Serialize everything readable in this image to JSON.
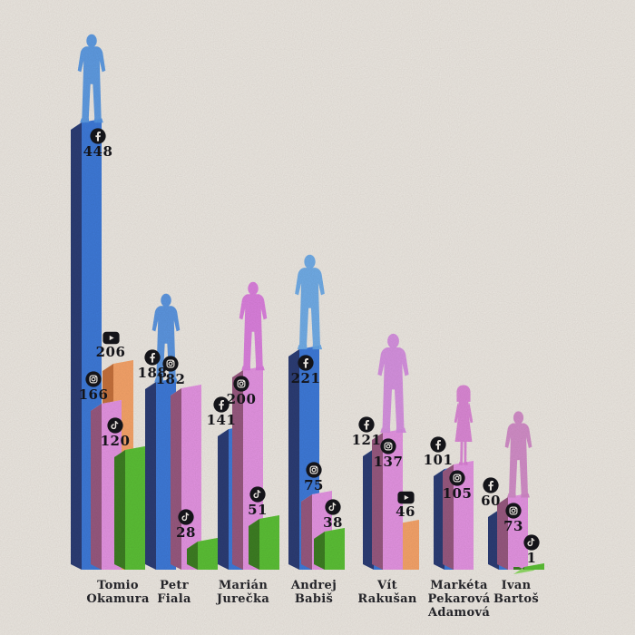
{
  "background_color": "#ece8e2",
  "chart_data": {
    "type": "bar",
    "title": "",
    "orientation": "vertical-3d-columns",
    "legend_position": "none",
    "value_axis_visible": false,
    "platforms": {
      "facebook": {
        "label": "Facebook",
        "icon": "facebook-icon",
        "face": "#3d79d8",
        "side": "#2b3c74",
        "top": "#a8c8ef"
      },
      "instagram": {
        "label": "Instagram",
        "icon": "instagram-icon",
        "face": "#e393e2",
        "side": "#96587f",
        "top": "#f2c7f0"
      },
      "tiktok": {
        "label": "TikTok",
        "icon": "tiktok-icon",
        "face": "#5abf35",
        "side": "#3c7d22",
        "top": "#90da66"
      },
      "youtube": {
        "label": "YouTube",
        "icon": "youtube-icon",
        "face": "#f5a369",
        "side": "#c4703b",
        "top": "#f9c89c"
      }
    },
    "icon_color": "#15151a",
    "groups": [
      {
        "name": "Tomio Okamura",
        "name_lines": [
          "Tomio",
          "Okamura"
        ],
        "figure_on": "facebook",
        "figure_variant": "male",
        "figure_color": "#5395e2",
        "bars": [
          {
            "platform": "facebook",
            "value": 448
          },
          {
            "platform": "instagram",
            "value": 166
          },
          {
            "platform": "youtube",
            "value": 206
          },
          {
            "platform": "tiktok",
            "value": 120
          }
        ]
      },
      {
        "name": "Petr Fiala",
        "name_lines": [
          "Petr",
          "Fiala"
        ],
        "figure_on": "facebook",
        "figure_variant": "male",
        "figure_color": "#4f8fe0",
        "bars": [
          {
            "platform": "facebook",
            "value": 188
          },
          {
            "platform": "instagram",
            "value": 182
          },
          {
            "platform": "tiktok",
            "value": 28
          }
        ]
      },
      {
        "name": "Marián Jurečka",
        "name_lines": [
          "Marián",
          "Jurečka"
        ],
        "figure_on": "instagram",
        "figure_variant": "male",
        "figure_color": "#d977dd",
        "bars": [
          {
            "platform": "facebook",
            "value": 141
          },
          {
            "platform": "instagram",
            "value": 200
          },
          {
            "platform": "tiktok",
            "value": 51
          }
        ]
      },
      {
        "name": "Andrej Babiš",
        "name_lines": [
          "Andrej",
          "Babiš"
        ],
        "figure_on": "facebook",
        "figure_variant": "male",
        "figure_color": "#66a7e8",
        "bars": [
          {
            "platform": "facebook",
            "value": 221
          },
          {
            "platform": "instagram",
            "value": 75
          },
          {
            "platform": "tiktok",
            "value": 38
          }
        ]
      },
      {
        "name": "Vít Rakušan",
        "name_lines": [
          "Vít",
          "Rakušan"
        ],
        "figure_on": "instagram",
        "figure_variant": "male",
        "figure_color": "#d48ae0",
        "bars": [
          {
            "platform": "facebook",
            "value": 121
          },
          {
            "platform": "instagram",
            "value": 137
          },
          {
            "platform": "youtube",
            "value": 46
          }
        ]
      },
      {
        "name": "Markéta Pekarová Adamová",
        "name_lines": [
          "Markéta",
          "Pekarová",
          "Adamová"
        ],
        "figure_on": "instagram",
        "figure_variant": "female",
        "figure_color": "#d97fd4",
        "bars": [
          {
            "platform": "facebook",
            "value": 101
          },
          {
            "platform": "instagram",
            "value": 105
          }
        ]
      },
      {
        "name": "Ivan Bartoš",
        "name_lines": [
          "Ivan",
          "Bartoš"
        ],
        "figure_on": "instagram",
        "figure_variant": "male",
        "figure_color": "#cf86c6",
        "bars": [
          {
            "platform": "facebook",
            "value": 60
          },
          {
            "platform": "instagram",
            "value": 73
          },
          {
            "platform": "tiktok",
            "value": 1
          }
        ]
      }
    ]
  }
}
